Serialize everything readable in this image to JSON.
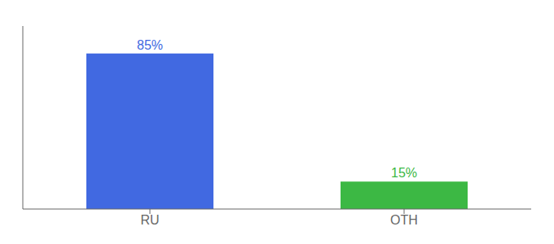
{
  "chart_data": {
    "type": "bar",
    "categories": [
      "RU",
      "OTH"
    ],
    "values": [
      85,
      15
    ],
    "value_labels": [
      "85%",
      "15%"
    ],
    "data_labels": true,
    "colors": [
      "#4169E1",
      "#3CB844"
    ],
    "ylim": [
      0,
      100
    ],
    "tick_labels": "x",
    "grid": false
  }
}
